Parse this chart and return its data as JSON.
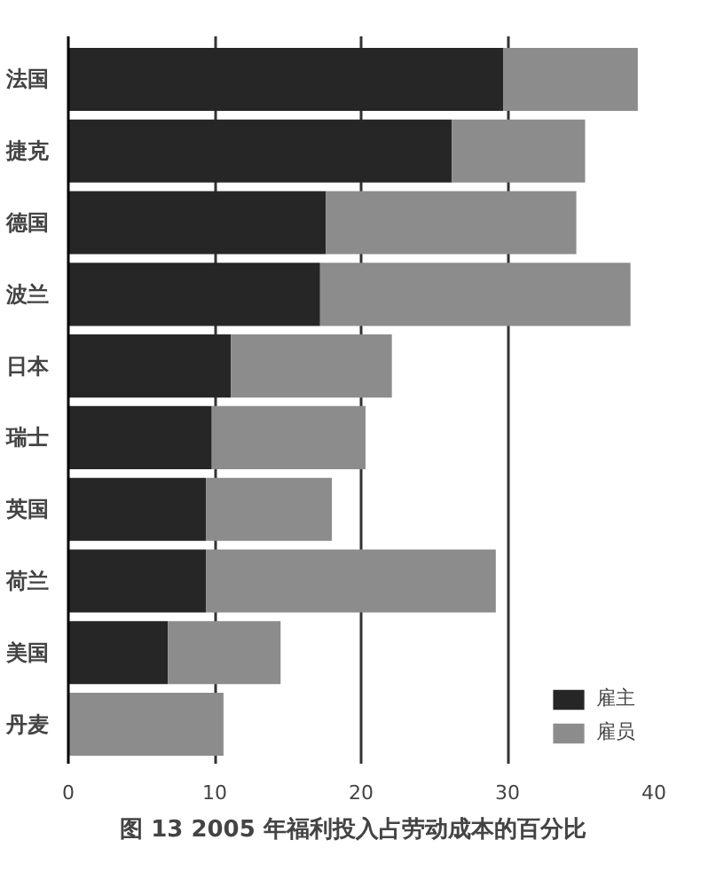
{
  "chart_data": {
    "type": "bar",
    "orientation": "horizontal",
    "stacked": true,
    "title": "图 13   2005 年福利投入占劳动成本的百分比",
    "categories": [
      "法国",
      "捷克",
      "德国",
      "波兰",
      "日本",
      "瑞士",
      "英国",
      "荷兰",
      "美国",
      "丹麦"
    ],
    "series": [
      {
        "name": "雇主",
        "color": "#262626",
        "values": [
          29.7,
          26.2,
          17.6,
          17.2,
          11.1,
          9.8,
          9.4,
          9.4,
          6.8,
          0
        ]
      },
      {
        "name": "雇员",
        "color": "#8c8c8c",
        "values": [
          9.2,
          9.1,
          17.1,
          21.2,
          11.0,
          10.5,
          8.6,
          19.8,
          7.7,
          10.6
        ]
      }
    ],
    "xlim": [
      0,
      40
    ],
    "xticks": [
      0,
      10,
      20,
      30,
      40
    ],
    "grid": "x",
    "legend": "bottom right"
  }
}
